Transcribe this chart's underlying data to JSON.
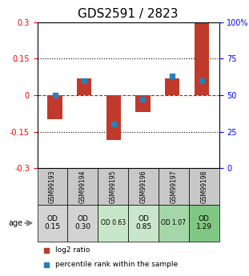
{
  "title": "GDS2591 / 2823",
  "samples": [
    "GSM99193",
    "GSM99194",
    "GSM99195",
    "GSM99196",
    "GSM99197",
    "GSM99198"
  ],
  "log2_ratio": [
    -0.1,
    0.07,
    -0.185,
    -0.07,
    0.07,
    0.3
  ],
  "percentile_rank": [
    50,
    60,
    30,
    47,
    63,
    60
  ],
  "left_ylim": [
    -0.3,
    0.3
  ],
  "right_ylim": [
    0,
    100
  ],
  "left_yticks": [
    -0.3,
    -0.15,
    0,
    0.15,
    0.3
  ],
  "right_yticks": [
    0,
    25,
    50,
    75,
    100
  ],
  "right_yticklabels": [
    "0",
    "25",
    "50",
    "75",
    "100%"
  ],
  "dotted_lines": [
    0.15,
    0,
    -0.15
  ],
  "bar_color": "#c0392b",
  "percentile_color": "#2980b9",
  "bar_width": 0.5,
  "age_label": "age",
  "od_values": [
    "OD\n0.15",
    "OD\n0.30",
    "OD 0.63",
    "OD\n0.85",
    "OD 1.07",
    "OD\n1.29"
  ],
  "od_colors": [
    "#d3d3d3",
    "#d3d3d3",
    "#c8e6c9",
    "#c8e6c9",
    "#a5d6a7",
    "#81c784"
  ],
  "od_fontsize_large": [
    0,
    1,
    3,
    5
  ],
  "legend_log2": "log2 ratio",
  "legend_pct": "percentile rank within the sample",
  "title_fontsize": 11,
  "tick_fontsize": 7,
  "label_fontsize": 8
}
